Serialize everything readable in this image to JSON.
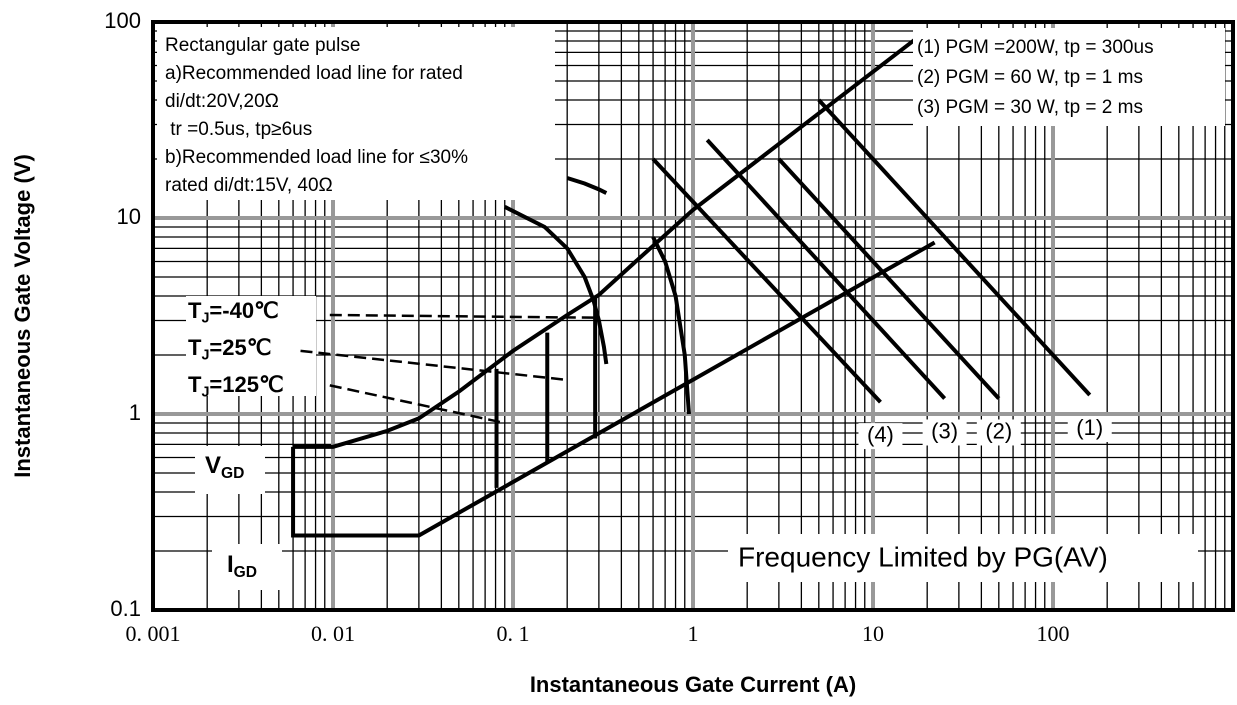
{
  "chart_data": {
    "type": "line",
    "xlabel": "Instantaneous Gate Current (A)",
    "ylabel": "Instantaneous Gate Voltage (V)",
    "xscale": "log",
    "yscale": "log",
    "grid": true,
    "color": "#000000",
    "xlim": [
      0.001,
      1000
    ],
    "ylim": [
      0.1,
      100
    ],
    "xticks": [
      {
        "value": 0.001,
        "label": "0. 001"
      },
      {
        "value": 0.01,
        "label": "0. 01"
      },
      {
        "value": 0.1,
        "label": "0. 1"
      },
      1,
      10,
      100
    ],
    "yticks": [
      0.1,
      1,
      10,
      100
    ],
    "series": [
      {
        "x": [
          0.006,
          0.01,
          0.02,
          0.03,
          0.05,
          0.1,
          0.2,
          0.3,
          0.5,
          1,
          17
        ],
        "values": [
          0.68,
          0.68,
          0.82,
          0.95,
          1.3,
          2.1,
          3.2,
          4.05,
          6.2,
          11,
          81
        ]
      },
      {
        "x": [
          0.006,
          0.006,
          0.03,
          22
        ],
        "values": [
          0.68,
          0.24,
          0.24,
          7.5
        ]
      },
      {
        "x": [
          0.081,
          0.081
        ],
        "values": [
          0.42,
          1.7
        ]
      },
      {
        "x": [
          0.155,
          0.155
        ],
        "values": [
          0.56,
          2.6
        ]
      },
      {
        "x": [
          0.286,
          0.286
        ],
        "values": [
          0.75,
          4
        ]
      },
      {
        "x": [
          0.2,
          0.25,
          0.3,
          0.33,
          null,
          0.6,
          0.7,
          0.8,
          0.9,
          0.95
        ],
        "values": [
          16,
          15,
          14,
          13.4,
          null,
          8,
          6,
          4,
          2,
          1
        ]
      },
      {
        "x": [
          0.09,
          0.15,
          0.2,
          0.25,
          0.28,
          0.3,
          0.32,
          0.33
        ],
        "values": [
          11.4,
          9,
          7,
          5,
          3.8,
          3,
          2.2,
          1.8
        ]
      },
      {
        "x": [
          0.0096,
          0.286
        ],
        "values": [
          3.2,
          3.1
        ],
        "dash": true
      },
      {
        "x": [
          0.0066,
          0.19
        ],
        "values": [
          2.1,
          1.5
        ],
        "dash": true
      },
      {
        "x": [
          0.0096,
          0.085
        ],
        "values": [
          1.4,
          0.91
        ],
        "dash": true
      },
      {
        "name": "(4)",
        "x": [
          0.6,
          11
        ],
        "values": [
          20,
          1.15
        ]
      },
      {
        "name": "(3)",
        "x": [
          1.2,
          25
        ],
        "values": [
          25,
          1.2
        ]
      },
      {
        "name": "(2)",
        "x": [
          3,
          50
        ],
        "values": [
          20,
          1.2
        ]
      },
      {
        "name": "(1)",
        "x": [
          5,
          160
        ],
        "values": [
          40,
          1.25
        ]
      }
    ],
    "notes_left": [
      "Rectangular gate pulse",
      "a)Recommended load line for rated",
      "di/dt:20V,20Ω",
      " tr =0.5us, tp≥6us",
      "b)Recommended load line for ≤30%",
      "rated di/dt:15V, 40Ω"
    ],
    "notes_right": [
      "(1) PGM =200W, tp = 300us",
      "(2) PGM = 60 W, tp = 1 ms",
      "(3) PGM = 30 W, tp = 2 ms"
    ],
    "frequency_note": "Frequency Limited by PG(AV)",
    "temperatures": [
      {
        "text": "T",
        "sub": "J",
        "rest": "=-40℃"
      },
      {
        "text": "T",
        "sub": "J",
        "rest": "=25℃"
      },
      {
        "text": "T",
        "sub": "J",
        "rest": "=125℃"
      }
    ],
    "vgd": {
      "text": "V",
      "sub": "GD"
    },
    "igd": {
      "text": "I",
      "sub": "GD"
    }
  }
}
